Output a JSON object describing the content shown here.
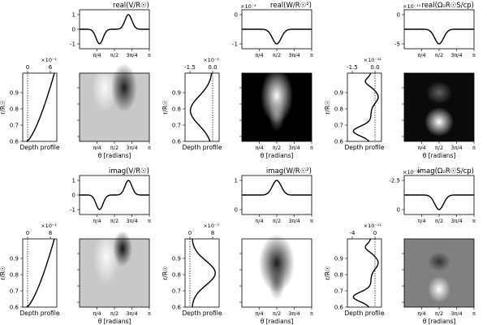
{
  "figure": {
    "xaxis_label": "θ [radians]",
    "depth_label": "Depth profile",
    "radius_label": "r/R☉",
    "theta_ticks": [
      "π/4",
      "π/2",
      "3π/4",
      "π"
    ],
    "radius_ticks": [
      "0.6",
      "0.7",
      "0.8",
      "0.9"
    ]
  },
  "chart_data": [
    {
      "type": "line",
      "title": "real(V/R☉)",
      "x": "theta",
      "y": [
        -1,
        0,
        1
      ],
      "yticks": [
        "-1",
        "0",
        "1"
      ],
      "multiplier": "",
      "shape": "antisym",
      "depth": {
        "type": "line",
        "multiplier": "×10⁻¹",
        "ticks": [
          "0",
          "6"
        ],
        "xlim": [
          0,
          9
        ],
        "dotted_at": 0,
        "shape": "monotonic"
      },
      "map": {
        "type": "heatmap",
        "pattern": "lobes-dark-light",
        "background": "#c8c8c8"
      }
    },
    {
      "type": "line",
      "title": "real(W/R☉²)",
      "x": "theta",
      "yticks": [
        "-1",
        "0"
      ],
      "multiplier": "×10⁻²",
      "shape": "dip",
      "depth": {
        "type": "line",
        "multiplier": "×10⁻²",
        "ticks": [
          "-1.5",
          "0.0"
        ],
        "xlim": [
          -2,
          0.3
        ],
        "dotted_at": 0,
        "shape": "negative-bulge"
      },
      "map": {
        "type": "heatmap",
        "pattern": "bright-v",
        "background": "#000000"
      }
    },
    {
      "type": "line",
      "title": "real(Ω₀R☉S/cp)",
      "x": "theta",
      "yticks": [
        "-5",
        "0"
      ],
      "multiplier": "×10⁻¹¹",
      "shape": "dip",
      "depth": {
        "type": "line",
        "multiplier": "×10⁻¹¹",
        "ticks": [
          "-1.5",
          "0.0"
        ],
        "xlim": [
          -2,
          0.3
        ],
        "dotted_at": 0,
        "shape": "oscillating"
      },
      "map": {
        "type": "heatmap",
        "pattern": "bright-blobs",
        "background": "#0a0a0a"
      }
    },
    {
      "type": "line",
      "title": "imag(V/R☉)",
      "x": "theta",
      "yticks": [
        "-1",
        "0",
        "1"
      ],
      "multiplier": "",
      "shape": "antisym",
      "depth": {
        "type": "line",
        "multiplier": "×10⁻¹",
        "ticks": [
          "0",
          "8"
        ],
        "xlim": [
          0,
          10
        ],
        "dotted_at": 0,
        "shape": "monotonic"
      },
      "map": {
        "type": "heatmap",
        "pattern": "lobes-light-dark",
        "background": "#c8c8c8"
      }
    },
    {
      "type": "line",
      "title": "imag(W/R☉²)",
      "x": "theta",
      "yticks": [
        "0",
        "1"
      ],
      "multiplier": "",
      "shape": "bump",
      "depth": {
        "type": "line",
        "multiplier": "×10⁻³",
        "ticks": [
          "0",
          "8"
        ],
        "xlim": [
          0,
          10
        ],
        "dotted_at": 0,
        "shape": "positive-bulge"
      },
      "map": {
        "type": "heatmap",
        "pattern": "dark-v",
        "background": "#ffffff"
      }
    },
    {
      "type": "line",
      "title": "imag(Ω₀R☉S/cp)",
      "x": "theta",
      "yticks": [
        "0",
        "-2.5"
      ],
      "multiplier": "×10⁻¹¹",
      "shape": "dip",
      "depth": {
        "type": "line",
        "multiplier": "×10⁻¹¹",
        "ticks": [
          "-4",
          "0"
        ],
        "xlim": [
          -5,
          1
        ],
        "dotted_at": 0,
        "shape": "oscillating"
      },
      "map": {
        "type": "heatmap",
        "pattern": "light-blobs",
        "background": "#808080"
      }
    }
  ]
}
